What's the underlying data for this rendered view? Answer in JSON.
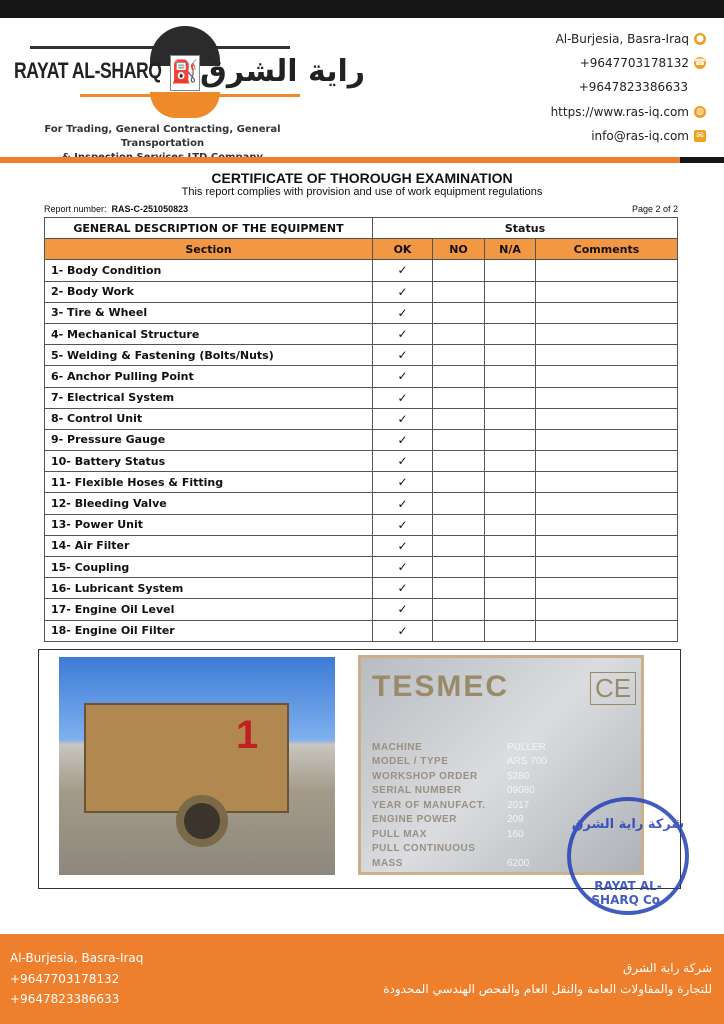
{
  "header": {
    "company_name": "RAYAT AL-SHARQ",
    "company_name_ar": "راية الشرق",
    "tagline_1": "For Trading, General Contracting, General Transportation",
    "tagline_2": "& Inspection Services LTD Company",
    "contacts": [
      {
        "icon": "location-pin-icon",
        "text": "Al-Burjesia, Basra-Iraq"
      },
      {
        "icon": "telephone-icon",
        "text": "+9647703178132"
      },
      {
        "icon": "",
        "text": "+9647823386633"
      },
      {
        "icon": "globe-icon",
        "text": "https://www.ras-iq.com"
      },
      {
        "icon": "envelope-icon",
        "text": "info@ras-iq.com"
      }
    ]
  },
  "document": {
    "title": "CERTIFICATE OF THOROUGH EXAMINATION",
    "subtitle": "This report complies with provision and use of work equipment regulations",
    "report_label": "Report number:",
    "report_number": "RAS-C-251050823",
    "page": "Page 2 of 2"
  },
  "table": {
    "group_headers": [
      "GENERAL DESCRIPTION OF THE EQUIPMENT",
      "Status"
    ],
    "columns": [
      "Section",
      "OK",
      "NO",
      "N/A",
      "Comments"
    ],
    "check_mark": "✓",
    "rows": [
      {
        "section": "1- Body Condition",
        "ok": true
      },
      {
        "section": "2- Body Work",
        "ok": true
      },
      {
        "section": "3- Tire & Wheel",
        "ok": true
      },
      {
        "section": "4- Mechanical Structure",
        "ok": true
      },
      {
        "section": "5- Welding & Fastening (Bolts/Nuts)",
        "ok": true
      },
      {
        "section": "6- Anchor Pulling Point",
        "ok": true
      },
      {
        "section": "7- Electrical System",
        "ok": true
      },
      {
        "section": "8- Control Unit",
        "ok": true
      },
      {
        "section": "9- Pressure Gauge",
        "ok": true
      },
      {
        "section": "10- Battery Status",
        "ok": true
      },
      {
        "section": "11- Flexible Hoses & Fitting",
        "ok": true
      },
      {
        "section": "12- Bleeding Valve",
        "ok": true
      },
      {
        "section": "13- Power Unit",
        "ok": true
      },
      {
        "section": "14- Air Filter",
        "ok": true
      },
      {
        "section": "15- Coupling",
        "ok": true
      },
      {
        "section": "16- Lubricant System",
        "ok": true
      },
      {
        "section": "17- Engine Oil Level",
        "ok": true
      },
      {
        "section": "18- Engine Oil Filter",
        "ok": true
      }
    ]
  },
  "nameplate": {
    "brand": "TESMEC",
    "mark": "CE",
    "fields": [
      {
        "label": "MACHINE",
        "value": "PULLER"
      },
      {
        "label": "MODEL / TYPE",
        "value": "ARS 700"
      },
      {
        "label": "WORKSHOP ORDER",
        "value": "5280"
      },
      {
        "label": "SERIAL NUMBER",
        "value": "09080"
      },
      {
        "label": "YEAR OF MANUFACT.",
        "value": "2017"
      },
      {
        "label": "ENGINE POWER",
        "value": "209"
      },
      {
        "label": "PULL MAX",
        "value": "160"
      },
      {
        "label": "PULL CONTINUOUS",
        "value": ""
      },
      {
        "label": "MASS",
        "value": "6200"
      }
    ]
  },
  "stamp": {
    "text_ar": "شركة راية الشرق",
    "text_en": "RAYAT AL-SHARQ Co."
  },
  "photo": {
    "marking": "1"
  },
  "footer": {
    "lines": [
      "Al-Burjesia, Basra-Iraq",
      "+9647703178132",
      "+9647823386633"
    ],
    "ar_line_1": "شركة راية الشرق",
    "ar_line_2": "للتجارة والمقاولات العامة والنقل العام والفحص الهندسي المحدودة"
  },
  "colors": {
    "accent": "#ee7f2d",
    "header_row": "#f29744",
    "dark": "#161616",
    "stamp": "#2440b8"
  }
}
